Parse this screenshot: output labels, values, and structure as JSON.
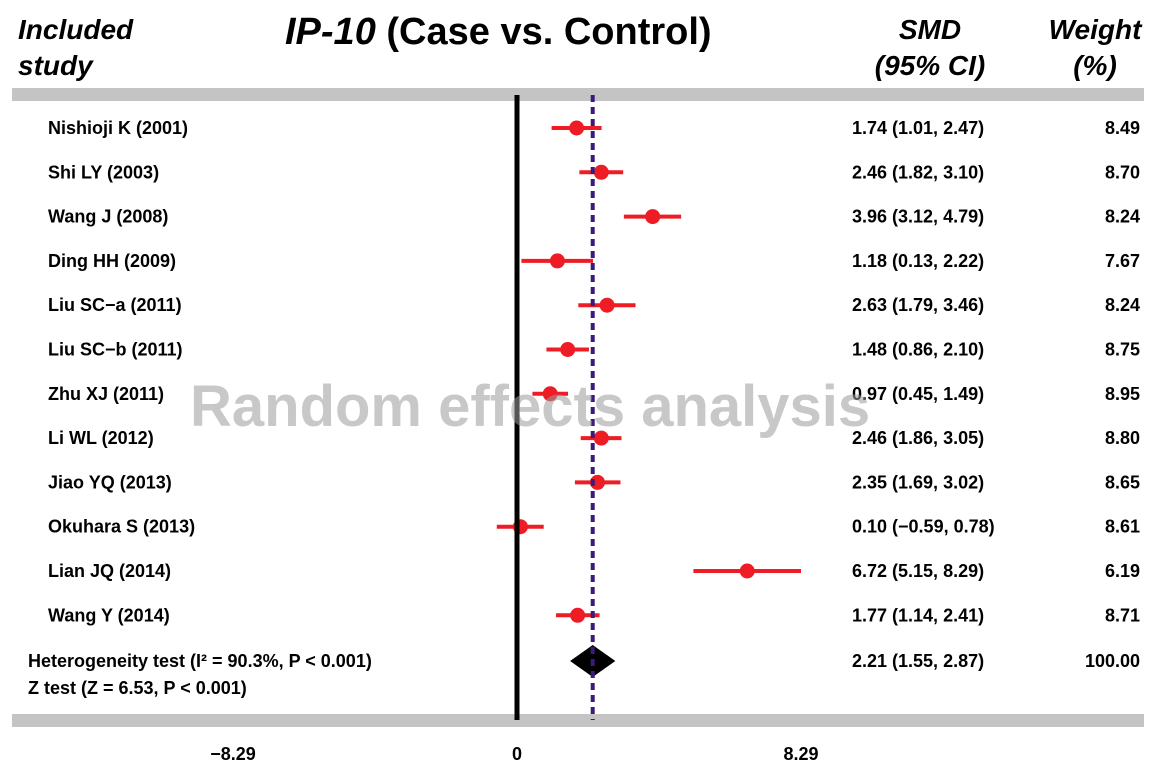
{
  "header": {
    "study_col": "Included\nstudy",
    "title_marker": "IP-10",
    "title_rest": " (Case vs. Control)",
    "smd_col": "SMD\n(95% CI)",
    "weight_col": "Weight\n(%)"
  },
  "watermark": "Random effects analysis",
  "chart_data": {
    "type": "forest",
    "xlim": [
      -8.29,
      8.29
    ],
    "x_ticks": [
      "−8.29",
      "0",
      "8.29"
    ],
    "null_line": 0,
    "studies": [
      {
        "name": "Nishioji K (2001)",
        "smd": 1.74,
        "lo": 1.01,
        "hi": 2.47,
        "ci_text": "1.74 (1.01, 2.47)",
        "weight": "8.49"
      },
      {
        "name": "Shi LY (2003)",
        "smd": 2.46,
        "lo": 1.82,
        "hi": 3.1,
        "ci_text": "2.46 (1.82, 3.10)",
        "weight": "8.70"
      },
      {
        "name": "Wang J (2008)",
        "smd": 3.96,
        "lo": 3.12,
        "hi": 4.79,
        "ci_text": "3.96 (3.12, 4.79)",
        "weight": "8.24"
      },
      {
        "name": "Ding HH (2009)",
        "smd": 1.18,
        "lo": 0.13,
        "hi": 2.22,
        "ci_text": "1.18 (0.13, 2.22)",
        "weight": "7.67"
      },
      {
        "name": "Liu SC−a (2011)",
        "smd": 2.63,
        "lo": 1.79,
        "hi": 3.46,
        "ci_text": "2.63 (1.79, 3.46)",
        "weight": "8.24"
      },
      {
        "name": "Liu SC−b (2011)",
        "smd": 1.48,
        "lo": 0.86,
        "hi": 2.1,
        "ci_text": "1.48 (0.86, 2.10)",
        "weight": "8.75"
      },
      {
        "name": "Zhu XJ (2011)",
        "smd": 0.97,
        "lo": 0.45,
        "hi": 1.49,
        "ci_text": "0.97 (0.45, 1.49)",
        "weight": "8.95"
      },
      {
        "name": "Li WL (2012)",
        "smd": 2.46,
        "lo": 1.86,
        "hi": 3.05,
        "ci_text": "2.46 (1.86, 3.05)",
        "weight": "8.80"
      },
      {
        "name": "Jiao YQ (2013)",
        "smd": 2.35,
        "lo": 1.69,
        "hi": 3.02,
        "ci_text": "2.35 (1.69, 3.02)",
        "weight": "8.65"
      },
      {
        "name": "Okuhara S (2013)",
        "smd": 0.1,
        "lo": -0.59,
        "hi": 0.78,
        "ci_text": "0.10 (−0.59, 0.78)",
        "weight": "8.61"
      },
      {
        "name": "Lian JQ (2014)",
        "smd": 6.72,
        "lo": 5.15,
        "hi": 8.29,
        "ci_text": "6.72 (5.15, 8.29)",
        "weight": "6.19"
      },
      {
        "name": "Wang Y (2014)",
        "smd": 1.77,
        "lo": 1.14,
        "hi": 2.41,
        "ci_text": "1.77 (1.14, 2.41)",
        "weight": "8.71"
      }
    ],
    "pooled": {
      "smd": 2.21,
      "lo": 1.55,
      "hi": 2.87,
      "ci_text": "2.21 (1.55, 2.87)",
      "weight": "100.00",
      "heterogeneity_label": "Heterogeneity test (I² = 90.3%, P < 0.001)",
      "z_label": "Z test (Z = 6.53, P < 0.001)"
    },
    "colors": {
      "study": "#ee1c24",
      "ci_line": "#ee1c24",
      "pooled": "#000000",
      "pooled_line": "#3a1a7a",
      "band": "#c4c4c4"
    }
  }
}
